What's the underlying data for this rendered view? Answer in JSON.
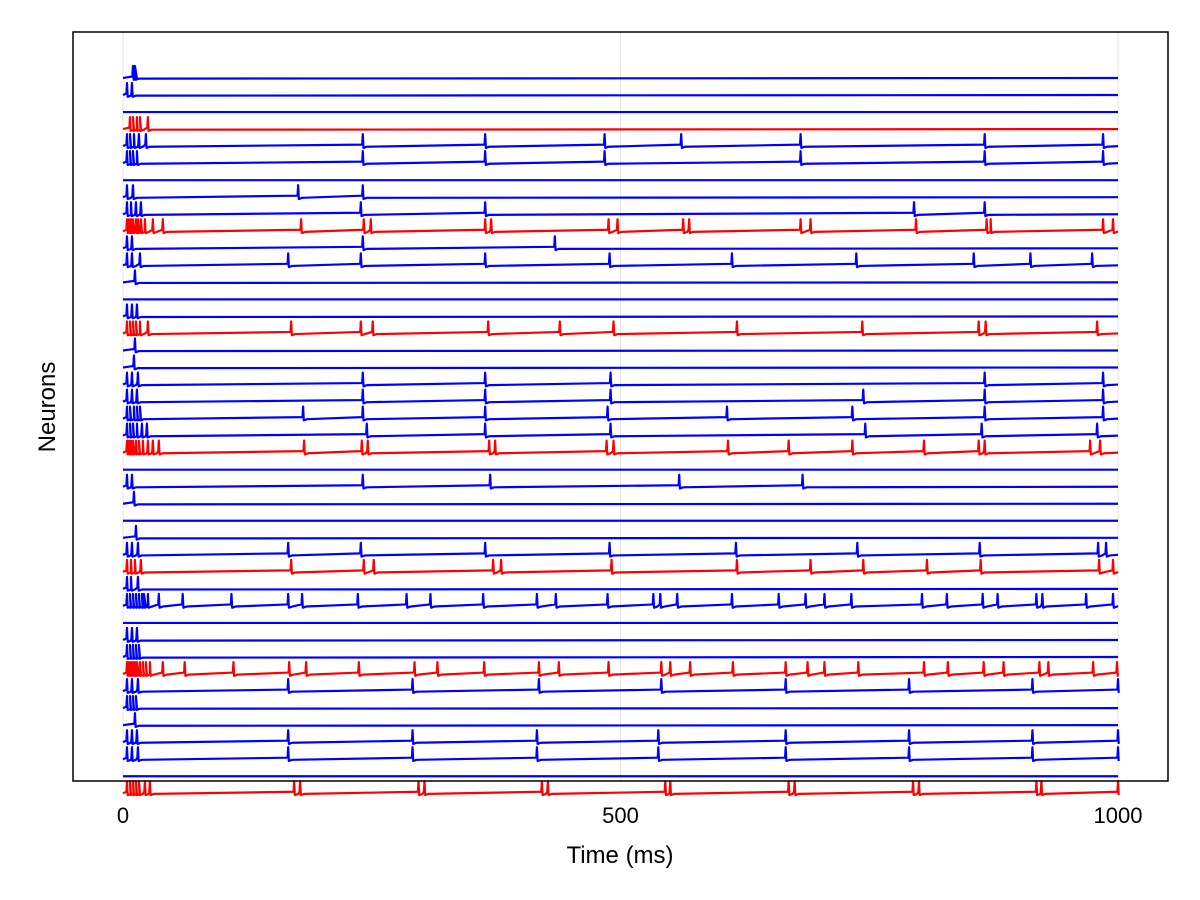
{
  "chart_data": {
    "type": "line",
    "xlabel": "Time (ms)",
    "ylabel": "Neurons",
    "xlim": [
      0,
      1000
    ],
    "xticks": [
      0,
      500,
      1000
    ],
    "xtick_labels": [
      "0",
      "500",
      "1000"
    ],
    "grid": "vertical",
    "colors": {
      "excitatory": "#0000ff",
      "inhibitory": "#ff0000"
    },
    "series": [
      {
        "color": "blue",
        "spikes": [
          10,
          12
        ]
      },
      {
        "color": "blue",
        "spikes": [
          4,
          9
        ]
      },
      {
        "color": "blue",
        "spikes": []
      },
      {
        "color": "red",
        "spikes": [
          7,
          10,
          14,
          17,
          25
        ]
      },
      {
        "color": "blue",
        "spikes": [
          4,
          7,
          11,
          16,
          23,
          241,
          364,
          484,
          561,
          681,
          866,
          985
        ]
      },
      {
        "color": "blue",
        "spikes": [
          4,
          7,
          10,
          14,
          241,
          364,
          484,
          681,
          866,
          985
        ]
      },
      {
        "color": "blue",
        "spikes": []
      },
      {
        "color": "blue",
        "spikes": [
          4,
          10,
          176,
          241
        ]
      },
      {
        "color": "blue",
        "spikes": [
          4,
          8,
          13,
          18,
          239,
          364,
          795,
          866
        ]
      },
      {
        "color": "red",
        "spikes": [
          4,
          6,
          8,
          10,
          13,
          15,
          18,
          22,
          30,
          40,
          179,
          242,
          249,
          364,
          370,
          488,
          497,
          563,
          569,
          681,
          691,
          797,
          868,
          872,
          985,
          995
        ]
      },
      {
        "color": "blue",
        "spikes": [
          4,
          9,
          241,
          434
        ]
      },
      {
        "color": "blue",
        "spikes": [
          4,
          9,
          17,
          166,
          239,
          364,
          489,
          612,
          737,
          855,
          912,
          974
        ]
      },
      {
        "color": "blue",
        "spikes": [
          12
        ]
      },
      {
        "color": "blue",
        "spikes": []
      },
      {
        "color": "blue",
        "spikes": [
          4,
          9,
          14
        ]
      },
      {
        "color": "red",
        "spikes": [
          4,
          7,
          10,
          13,
          17,
          25,
          169,
          239,
          251,
          367,
          439,
          493,
          617,
          743,
          860,
          867,
          979
        ]
      },
      {
        "color": "blue",
        "spikes": [
          12
        ]
      },
      {
        "color": "blue",
        "spikes": [
          11
        ]
      },
      {
        "color": "blue",
        "spikes": [
          4,
          9,
          15,
          241,
          364,
          490,
          866,
          985
        ]
      },
      {
        "color": "blue",
        "spikes": [
          4,
          9,
          14,
          241,
          364,
          490,
          744,
          866,
          985
        ]
      },
      {
        "color": "blue",
        "spikes": [
          4,
          7,
          11,
          14,
          17,
          181,
          241,
          364,
          487,
          607,
          733,
          866,
          985
        ]
      },
      {
        "color": "blue",
        "spikes": [
          4,
          7,
          10,
          14,
          19,
          24,
          245,
          364,
          490,
          746,
          863,
          979
        ]
      },
      {
        "color": "red",
        "spikes": [
          4,
          6,
          8,
          10,
          13,
          16,
          20,
          25,
          30,
          36,
          182,
          240,
          246,
          368,
          374,
          486,
          493,
          608,
          669,
          733,
          805,
          860,
          866,
          972,
          982
        ]
      },
      {
        "color": "blue",
        "spikes": []
      },
      {
        "color": "blue",
        "spikes": [
          4,
          9,
          241,
          369,
          559,
          683
        ]
      },
      {
        "color": "blue",
        "spikes": [
          11
        ]
      },
      {
        "color": "blue",
        "spikes": []
      },
      {
        "color": "blue",
        "spikes": [
          13
        ]
      },
      {
        "color": "blue",
        "spikes": [
          4,
          9,
          15,
          166,
          239,
          364,
          489,
          616,
          738,
          861,
          980,
          988
        ]
      },
      {
        "color": "red",
        "spikes": [
          4,
          8,
          12,
          18,
          169,
          242,
          252,
          372,
          380,
          491,
          617,
          691,
          744,
          808,
          862,
          981,
          995
        ]
      },
      {
        "color": "blue",
        "spikes": [
          4,
          8,
          15
        ]
      },
      {
        "color": "blue",
        "spikes": [
          4,
          7,
          10,
          13,
          16,
          19,
          21,
          25,
          36,
          60,
          109,
          166,
          180,
          236,
          285,
          309,
          362,
          416,
          435,
          487,
          533,
          540,
          557,
          612,
          659,
          686,
          705,
          732,
          803,
          828,
          864,
          879,
          918,
          924,
          968,
          995
        ]
      },
      {
        "color": "blue",
        "spikes": []
      },
      {
        "color": "blue",
        "spikes": [
          4,
          9,
          14
        ]
      },
      {
        "color": "blue",
        "spikes": [
          4,
          7,
          10,
          13,
          16
        ]
      },
      {
        "color": "red",
        "spikes": [
          4,
          6,
          8,
          10,
          12,
          14,
          17,
          20,
          23,
          27,
          40,
          62,
          111,
          167,
          184,
          237,
          293,
          316,
          363,
          418,
          438,
          488,
          541,
          550,
          570,
          613,
          666,
          688,
          705,
          739,
          805,
          829,
          865,
          885,
          921,
          930,
          975,
          999
        ]
      },
      {
        "color": "blue",
        "spikes": [
          4,
          9,
          15,
          166,
          291,
          418,
          541,
          666,
          790,
          914,
          1000
        ]
      },
      {
        "color": "blue",
        "spikes": [
          4,
          7,
          10,
          13
        ]
      },
      {
        "color": "blue",
        "spikes": [
          12
        ]
      },
      {
        "color": "blue",
        "spikes": [
          4,
          9,
          14,
          166,
          291,
          416,
          538,
          666,
          790,
          914,
          1000
        ]
      },
      {
        "color": "blue",
        "spikes": [
          4,
          9,
          15,
          166,
          291,
          416,
          538,
          666,
          790,
          914,
          1000
        ]
      },
      {
        "color": "blue",
        "spikes": []
      },
      {
        "color": "red",
        "spikes": [
          4,
          7,
          10,
          13,
          16,
          22,
          27,
          172,
          178,
          297,
          303,
          421,
          427,
          545,
          550,
          669,
          675,
          794,
          800,
          918,
          923,
          1000
        ]
      }
    ]
  }
}
